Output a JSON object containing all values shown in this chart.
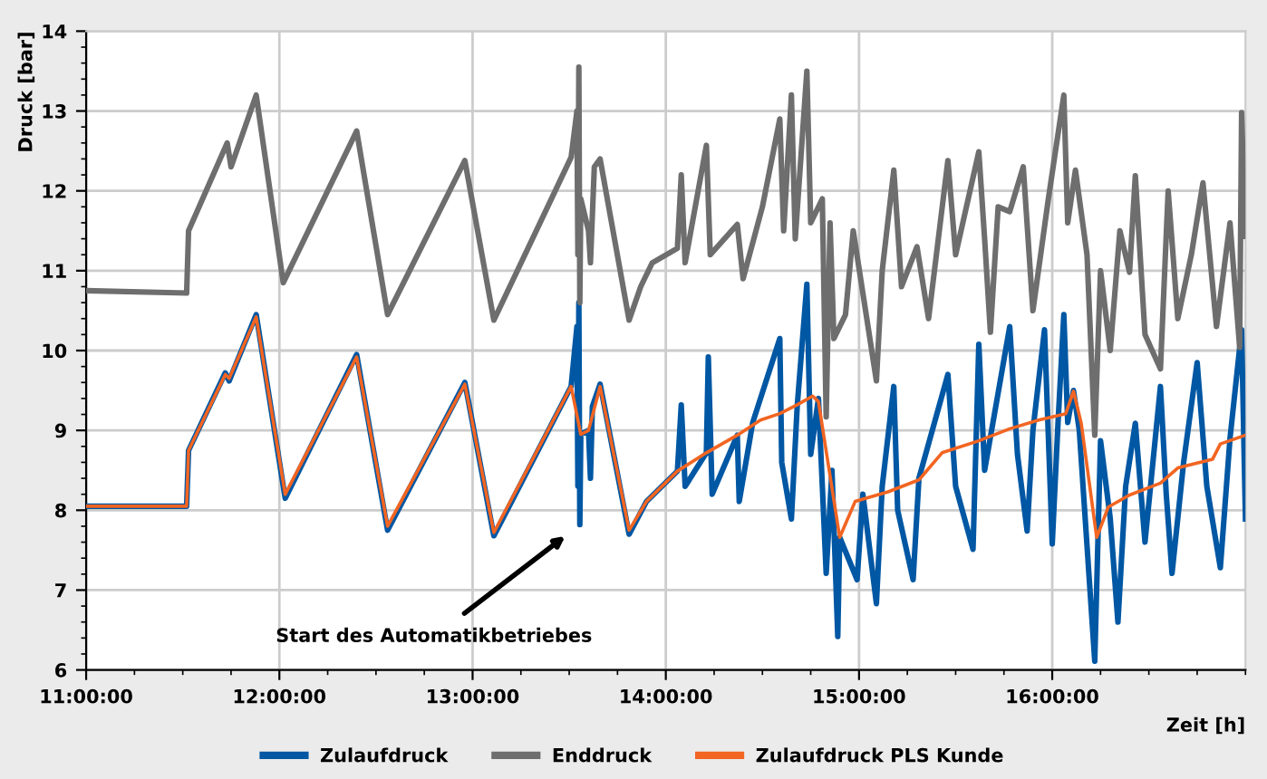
{
  "chart_data": {
    "type": "line",
    "xlabel": "Zeit [h]",
    "ylabel": "Druck [bar]",
    "xlim": [
      11,
      17
    ],
    "ylim": [
      6,
      14
    ],
    "xticks": [
      {
        "value": 11,
        "label": "11:00:00"
      },
      {
        "value": 12,
        "label": "12:00:00"
      },
      {
        "value": 13,
        "label": "13:00:00"
      },
      {
        "value": 14,
        "label": "14:00:00"
      },
      {
        "value": 15,
        "label": "15:00:00"
      },
      {
        "value": 16,
        "label": "16:00:00"
      }
    ],
    "yticks": [
      6,
      7,
      8,
      9,
      10,
      11,
      12,
      13,
      14
    ],
    "grid": true,
    "legend": "bottom",
    "marker": "none",
    "line_style": "solid",
    "annotations": [
      "Start des Automatikbetriebes"
    ],
    "series": [
      {
        "name": "Zulaufdruck",
        "color": "#0057a3",
        "x": [
          11.0,
          11.52,
          11.53,
          11.72,
          11.74,
          11.88,
          12.03,
          12.4,
          12.56,
          12.96,
          13.11,
          13.51,
          13.54,
          13.545,
          13.55,
          13.555,
          13.56,
          13.6,
          13.61,
          13.62,
          13.66,
          13.81,
          13.9,
          14.06,
          14.08,
          14.1,
          14.21,
          14.22,
          14.24,
          14.37,
          14.38,
          14.45,
          14.59,
          14.6,
          14.65,
          14.68,
          14.73,
          14.75,
          14.79,
          14.83,
          14.86,
          14.89,
          14.9,
          14.99,
          15.02,
          15.09,
          15.12,
          15.18,
          15.2,
          15.28,
          15.31,
          15.46,
          15.5,
          15.59,
          15.62,
          15.65,
          15.78,
          15.82,
          15.87,
          15.9,
          15.96,
          16.0,
          16.03,
          16.06,
          16.08,
          16.11,
          16.14,
          16.22,
          16.25,
          16.3,
          16.34,
          16.38,
          16.43,
          16.48,
          16.56,
          16.59,
          16.62,
          16.68,
          16.75,
          16.8,
          16.87,
          16.92,
          16.98,
          17.0
        ],
        "values": [
          8.05,
          8.05,
          8.75,
          9.72,
          9.62,
          10.45,
          8.15,
          9.95,
          7.75,
          9.6,
          7.68,
          9.55,
          10.3,
          8.3,
          10.6,
          7.82,
          8.95,
          9.0,
          8.4,
          9.3,
          9.58,
          7.7,
          8.11,
          8.49,
          9.32,
          8.3,
          8.72,
          9.92,
          8.2,
          8.94,
          8.11,
          9.1,
          10.15,
          8.6,
          7.89,
          9.3,
          10.83,
          8.7,
          9.4,
          7.21,
          8.5,
          6.42,
          7.66,
          7.13,
          8.2,
          6.83,
          8.3,
          9.55,
          8.0,
          7.13,
          8.4,
          9.7,
          8.3,
          7.51,
          10.08,
          8.5,
          10.3,
          8.7,
          7.74,
          9.0,
          10.26,
          7.58,
          9.1,
          10.45,
          9.1,
          9.5,
          9.0,
          6.11,
          8.87,
          7.9,
          6.6,
          8.3,
          9.09,
          7.6,
          9.55,
          8.2,
          7.21,
          8.6,
          9.85,
          8.3,
          7.28,
          8.9,
          10.26,
          7.89
        ]
      },
      {
        "name": "Enddruck",
        "color": "#6e6e6e",
        "x": [
          11.0,
          11.52,
          11.53,
          11.73,
          11.75,
          11.88,
          12.02,
          12.4,
          12.56,
          12.96,
          13.11,
          13.51,
          13.54,
          13.545,
          13.55,
          13.555,
          13.56,
          13.6,
          13.61,
          13.63,
          13.66,
          13.81,
          13.87,
          13.93,
          14.06,
          14.08,
          14.1,
          14.21,
          14.23,
          14.37,
          14.4,
          14.5,
          14.59,
          14.61,
          14.65,
          14.67,
          14.73,
          14.75,
          14.81,
          14.83,
          14.85,
          14.87,
          14.93,
          14.97,
          15.09,
          15.12,
          15.18,
          15.22,
          15.3,
          15.36,
          15.46,
          15.5,
          15.62,
          15.65,
          15.68,
          15.72,
          15.78,
          15.85,
          15.9,
          15.98,
          16.06,
          16.08,
          16.12,
          16.18,
          16.22,
          16.25,
          16.3,
          16.35,
          16.4,
          16.43,
          16.48,
          16.56,
          16.6,
          16.65,
          16.72,
          16.78,
          16.85,
          16.92,
          16.97,
          16.98,
          17.0
        ],
        "values": [
          10.75,
          10.72,
          11.5,
          12.6,
          12.3,
          13.2,
          10.85,
          12.75,
          10.45,
          12.38,
          10.38,
          12.42,
          13.0,
          11.2,
          13.55,
          10.6,
          11.9,
          11.5,
          11.1,
          12.3,
          12.4,
          10.38,
          10.8,
          11.1,
          11.28,
          12.2,
          11.1,
          12.57,
          11.2,
          11.58,
          10.9,
          11.8,
          12.9,
          11.5,
          13.2,
          11.4,
          13.5,
          11.6,
          11.9,
          9.17,
          11.6,
          10.15,
          10.45,
          11.5,
          9.62,
          11.0,
          12.26,
          10.8,
          11.3,
          10.4,
          12.38,
          11.2,
          12.49,
          11.4,
          10.23,
          11.8,
          11.74,
          12.3,
          10.5,
          11.9,
          13.2,
          11.6,
          12.26,
          11.2,
          8.94,
          11.0,
          10.0,
          11.5,
          10.98,
          12.19,
          10.2,
          9.77,
          12.0,
          10.4,
          11.2,
          12.1,
          10.3,
          11.6,
          10.04,
          12.98,
          11.43
        ]
      },
      {
        "name": "Zulaufdruck PLS Kunde",
        "color": "#f26522",
        "x": [
          11.0,
          11.52,
          11.53,
          11.72,
          11.74,
          11.88,
          12.03,
          12.4,
          12.56,
          12.96,
          13.11,
          13.51,
          13.56,
          13.6,
          13.66,
          13.81,
          13.9,
          14.06,
          14.21,
          14.37,
          14.49,
          14.59,
          14.68,
          14.76,
          14.79,
          14.9,
          14.98,
          15.15,
          15.31,
          15.43,
          15.62,
          15.78,
          15.93,
          16.07,
          16.11,
          16.15,
          16.23,
          16.29,
          16.4,
          16.56,
          16.65,
          16.83,
          16.87,
          17.0
        ],
        "values": [
          8.05,
          8.05,
          8.75,
          9.7,
          9.65,
          10.42,
          8.2,
          9.92,
          7.8,
          9.58,
          7.72,
          9.55,
          8.95,
          9.0,
          9.55,
          7.75,
          8.11,
          8.49,
          8.72,
          8.94,
          9.13,
          9.21,
          9.32,
          9.43,
          9.36,
          7.66,
          8.11,
          8.23,
          8.38,
          8.72,
          8.87,
          9.02,
          9.13,
          9.21,
          9.49,
          9.09,
          7.66,
          8.04,
          8.19,
          8.34,
          8.53,
          8.64,
          8.83,
          8.94
        ]
      }
    ]
  }
}
